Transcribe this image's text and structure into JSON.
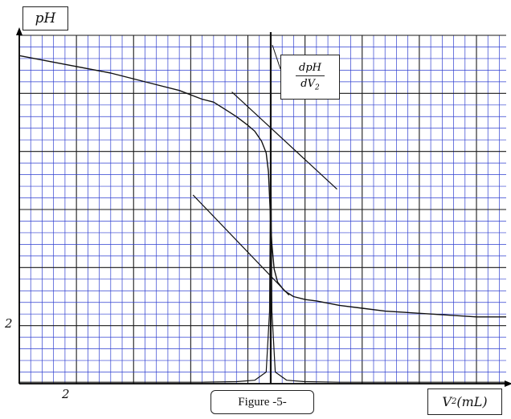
{
  "chart_data": {
    "type": "line",
    "ylabel": "pH",
    "xlabel": "V2(mL)",
    "xlabel_main": "V",
    "xlabel_sub": "2",
    "xlabel_unit": "(mL)",
    "ytick_label": "2",
    "xtick_label": "2",
    "caption": "Figure -5-",
    "derivative_label": {
      "numerator": "dpH",
      "denominator": "dV2",
      "den_main": "dV",
      "den_sub": "2"
    },
    "xlim": [
      0,
      21.3
    ],
    "ylim": [
      0,
      12
    ],
    "grid": true,
    "series": [
      {
        "kind": "titration",
        "x": [
          0,
          2,
          4,
          6,
          7,
          8,
          8.5,
          9,
          9.5,
          10,
          10.3,
          10.6,
          10.8,
          10.9,
          11.0,
          11.05,
          11.15,
          11.3,
          11.6,
          12,
          12.5,
          13,
          14,
          15,
          16,
          18,
          20,
          21.3
        ],
        "y": [
          11.3,
          11.0,
          10.7,
          10.3,
          10.1,
          9.8,
          9.7,
          9.45,
          9.2,
          8.9,
          8.7,
          8.35,
          7.95,
          7.3,
          5.5,
          4.8,
          3.95,
          3.5,
          3.2,
          3.0,
          2.9,
          2.85,
          2.7,
          2.6,
          2.5,
          2.4,
          2.3,
          2.3
        ]
      },
      {
        "kind": "derivative",
        "x": [
          0,
          8,
          9.5,
          10.3,
          10.8,
          10.95,
          11.0,
          11.05,
          11.2,
          11.7,
          12.5,
          14,
          21.3
        ],
        "y": [
          0.05,
          0.05,
          0.07,
          0.12,
          0.4,
          2.5,
          8.5,
          2.5,
          0.4,
          0.12,
          0.07,
          0.05,
          0.05
        ]
      }
    ],
    "tangents": [
      {
        "x": [
          9.3,
          13.9
        ],
        "y": [
          10.05,
          6.7
        ]
      },
      {
        "x": [
          7.6,
          11.8
        ],
        "y": [
          6.5,
          3.05
        ]
      }
    ],
    "equivalence_x": 11.0,
    "colors": {
      "grid_minor": "#2f3fd0",
      "grid_major": "#1a1a1a",
      "curve": "#111111"
    }
  }
}
